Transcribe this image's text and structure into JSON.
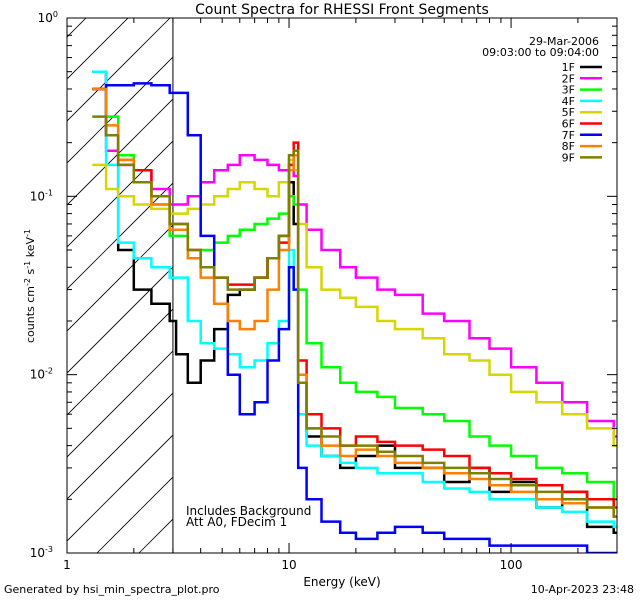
{
  "footer": {
    "generated": "Generated by hsi_min_spectra_plot.pro",
    "timestamp": "10-Apr-2023 23:48"
  },
  "chart_data": {
    "type": "line",
    "title": "Count Spectra for RHESSI Front Segments",
    "xlabel": "Energy (keV)",
    "ylabel": "counts cm⁻² s⁻¹ keV⁻¹",
    "xscale": "log",
    "yscale": "log",
    "xlim": [
      1,
      300
    ],
    "ylim": [
      0.001,
      1
    ],
    "x_ticks": [
      {
        "value": 1,
        "label": "1"
      },
      {
        "value": 10,
        "label": "10"
      },
      {
        "value": 100,
        "label": "100"
      }
    ],
    "y_ticks": [
      {
        "value": 1,
        "base": "10",
        "exp": "0"
      },
      {
        "value": 0.1,
        "base": "10",
        "exp": "-1"
      },
      {
        "value": 0.01,
        "base": "10",
        "exp": "-2"
      },
      {
        "value": 0.001,
        "base": "10",
        "exp": "-3"
      }
    ],
    "date": "29-Mar-2006",
    "time_range": "09:03:00 to 09:04:00",
    "annotations": [
      "Includes Background",
      "Att A0, FDecim 1"
    ],
    "attenuator_cutoff_kev": 3,
    "series": [
      {
        "name": "1F",
        "color": "#000000",
        "x": [
          1.3,
          1.5,
          1.7,
          2.0,
          2.4,
          2.9,
          3.1,
          3.5,
          4.0,
          4.6,
          5.3,
          6.0,
          7.0,
          8.0,
          9.0,
          10.0,
          10.5,
          11.0,
          12.0,
          14.0,
          17.0,
          20.0,
          25.0,
          30.0,
          40.0,
          50.0,
          65.0,
          80.0,
          100.0,
          130.0,
          170.0,
          220.0,
          290.0
        ],
        "y": [
          0.5,
          0.22,
          0.05,
          0.03,
          0.025,
          0.02,
          0.013,
          0.009,
          0.012,
          0.018,
          0.028,
          0.03,
          0.035,
          0.045,
          0.06,
          0.12,
          0.07,
          0.009,
          0.0045,
          0.0035,
          0.003,
          0.0035,
          0.004,
          0.003,
          0.003,
          0.0025,
          0.003,
          0.0022,
          0.0025,
          0.0018,
          0.0022,
          0.0014,
          0.0013
        ]
      },
      {
        "name": "2F",
        "color": "#ff00ff",
        "x": [
          1.3,
          1.5,
          1.7,
          2.0,
          2.4,
          2.9,
          3.5,
          4.0,
          4.6,
          5.3,
          6.0,
          7.0,
          8.0,
          9.0,
          10.0,
          10.5,
          11.0,
          12.0,
          14.0,
          17.0,
          20.0,
          25.0,
          30.0,
          40.0,
          50.0,
          65.0,
          80.0,
          100.0,
          130.0,
          170.0,
          220.0,
          290.0
        ],
        "y": [
          0.5,
          0.18,
          0.15,
          0.14,
          0.11,
          0.09,
          0.1,
          0.12,
          0.14,
          0.15,
          0.17,
          0.16,
          0.15,
          0.14,
          0.15,
          0.13,
          0.09,
          0.065,
          0.05,
          0.04,
          0.035,
          0.03,
          0.028,
          0.022,
          0.02,
          0.016,
          0.014,
          0.011,
          0.009,
          0.007,
          0.0055,
          0.0045
        ]
      },
      {
        "name": "3F",
        "color": "#00ff00",
        "x": [
          1.3,
          1.5,
          1.7,
          2.0,
          2.4,
          2.9,
          3.5,
          4.0,
          4.6,
          5.3,
          6.0,
          7.0,
          8.0,
          9.0,
          10.0,
          10.5,
          11.0,
          12.0,
          14.0,
          17.0,
          20.0,
          25.0,
          30.0,
          40.0,
          50.0,
          65.0,
          80.0,
          100.0,
          130.0,
          170.0,
          220.0,
          290.0
        ],
        "y": [
          0.4,
          0.28,
          0.17,
          0.12,
          0.09,
          0.06,
          0.045,
          0.05,
          0.055,
          0.06,
          0.065,
          0.07,
          0.075,
          0.08,
          0.1,
          0.09,
          0.03,
          0.015,
          0.011,
          0.009,
          0.008,
          0.0075,
          0.0065,
          0.006,
          0.0055,
          0.0045,
          0.004,
          0.0035,
          0.003,
          0.0028,
          0.0025,
          0.002
        ]
      },
      {
        "name": "4F",
        "color": "#00ffff",
        "x": [
          1.3,
          1.5,
          1.7,
          2.0,
          2.4,
          2.9,
          3.5,
          4.0,
          4.6,
          5.3,
          6.0,
          7.0,
          8.0,
          9.0,
          10.0,
          10.5,
          11.0,
          12.0,
          14.0,
          17.0,
          20.0,
          25.0,
          30.0,
          40.0,
          50.0,
          65.0,
          80.0,
          100.0,
          130.0,
          170.0,
          220.0,
          290.0
        ],
        "y": [
          0.5,
          0.15,
          0.055,
          0.045,
          0.04,
          0.035,
          0.02,
          0.015,
          0.014,
          0.013,
          0.011,
          0.012,
          0.015,
          0.02,
          0.05,
          0.03,
          0.006,
          0.004,
          0.0035,
          0.0032,
          0.003,
          0.0028,
          0.0028,
          0.0025,
          0.0023,
          0.0022,
          0.002,
          0.002,
          0.0018,
          0.0017,
          0.0015,
          0.0014
        ]
      },
      {
        "name": "5F",
        "color": "#d6d600",
        "x": [
          1.3,
          1.5,
          1.7,
          2.0,
          2.4,
          2.9,
          3.5,
          4.0,
          4.6,
          5.3,
          6.0,
          7.0,
          8.0,
          9.0,
          10.0,
          10.5,
          11.0,
          12.0,
          14.0,
          17.0,
          20.0,
          25.0,
          30.0,
          40.0,
          50.0,
          65.0,
          80.0,
          100.0,
          130.0,
          170.0,
          220.0,
          290.0
        ],
        "y": [
          0.15,
          0.11,
          0.1,
          0.09,
          0.085,
          0.08,
          0.085,
          0.09,
          0.1,
          0.11,
          0.12,
          0.11,
          0.1,
          0.12,
          0.16,
          0.14,
          0.07,
          0.04,
          0.03,
          0.027,
          0.024,
          0.02,
          0.018,
          0.016,
          0.013,
          0.012,
          0.01,
          0.008,
          0.007,
          0.006,
          0.005,
          0.004
        ]
      },
      {
        "name": "6F",
        "color": "#ff0000",
        "x": [
          1.3,
          1.5,
          1.7,
          2.0,
          2.4,
          2.9,
          3.5,
          4.0,
          4.6,
          5.3,
          6.0,
          7.0,
          8.0,
          9.0,
          10.0,
          10.5,
          11.0,
          12.0,
          14.0,
          17.0,
          20.0,
          25.0,
          30.0,
          40.0,
          50.0,
          65.0,
          80.0,
          100.0,
          130.0,
          170.0,
          220.0,
          290.0
        ],
        "y": [
          0.4,
          0.22,
          0.16,
          0.14,
          0.1,
          0.07,
          0.05,
          0.04,
          0.035,
          0.032,
          0.032,
          0.035,
          0.045,
          0.055,
          0.15,
          0.2,
          0.012,
          0.006,
          0.005,
          0.004,
          0.0045,
          0.0042,
          0.004,
          0.0038,
          0.0035,
          0.003,
          0.0028,
          0.0026,
          0.0024,
          0.0022,
          0.002,
          0.0018
        ]
      },
      {
        "name": "7F",
        "color": "#0000ff",
        "x": [
          1.3,
          1.5,
          1.7,
          2.0,
          2.4,
          2.9,
          3.5,
          4.0,
          4.6,
          5.3,
          6.0,
          7.0,
          8.0,
          9.0,
          10.0,
          10.5,
          11.0,
          12.0,
          14.0,
          17.0,
          20.0,
          25.0,
          30.0,
          40.0,
          50.0,
          65.0,
          80.0,
          100.0,
          130.0,
          170.0,
          220.0,
          290.0
        ],
        "y": [
          0.4,
          0.42,
          0.42,
          0.43,
          0.42,
          0.38,
          0.22,
          0.06,
          0.025,
          0.01,
          0.006,
          0.007,
          0.012,
          0.018,
          0.04,
          0.03,
          0.003,
          0.002,
          0.0015,
          0.0013,
          0.0012,
          0.0013,
          0.0014,
          0.0013,
          0.0012,
          0.0012,
          0.0011,
          0.0011,
          0.0011,
          0.0011,
          0.001,
          0.001
        ]
      },
      {
        "name": "8F",
        "color": "#ff8000",
        "x": [
          1.3,
          1.5,
          1.7,
          2.0,
          2.4,
          2.9,
          3.5,
          4.0,
          4.6,
          5.3,
          6.0,
          7.0,
          8.0,
          9.0,
          10.0,
          10.5,
          11.0,
          12.0,
          14.0,
          17.0,
          20.0,
          25.0,
          30.0,
          40.0,
          50.0,
          65.0,
          80.0,
          100.0,
          130.0,
          170.0,
          220.0,
          290.0
        ],
        "y": [
          0.4,
          0.25,
          0.16,
          0.12,
          0.09,
          0.065,
          0.045,
          0.035,
          0.025,
          0.02,
          0.018,
          0.02,
          0.03,
          0.05,
          0.14,
          0.17,
          0.01,
          0.005,
          0.004,
          0.0035,
          0.0038,
          0.0035,
          0.0032,
          0.003,
          0.0028,
          0.0026,
          0.0024,
          0.0022,
          0.002,
          0.0019,
          0.0018,
          0.0016
        ]
      },
      {
        "name": "9F",
        "color": "#808000",
        "x": [
          1.3,
          1.5,
          1.7,
          2.0,
          2.4,
          2.9,
          3.5,
          4.0,
          4.6,
          5.3,
          6.0,
          7.0,
          8.0,
          9.0,
          10.0,
          10.5,
          11.0,
          12.0,
          14.0,
          17.0,
          20.0,
          25.0,
          30.0,
          40.0,
          50.0,
          65.0,
          80.0,
          100.0,
          130.0,
          170.0,
          220.0,
          290.0
        ],
        "y": [
          0.28,
          0.22,
          0.15,
          0.12,
          0.1,
          0.07,
          0.05,
          0.04,
          0.035,
          0.03,
          0.03,
          0.035,
          0.045,
          0.06,
          0.17,
          0.18,
          0.009,
          0.005,
          0.0045,
          0.004,
          0.004,
          0.0037,
          0.0035,
          0.0032,
          0.003,
          0.0028,
          0.0026,
          0.0024,
          0.0022,
          0.002,
          0.0018,
          0.0016
        ]
      }
    ]
  }
}
